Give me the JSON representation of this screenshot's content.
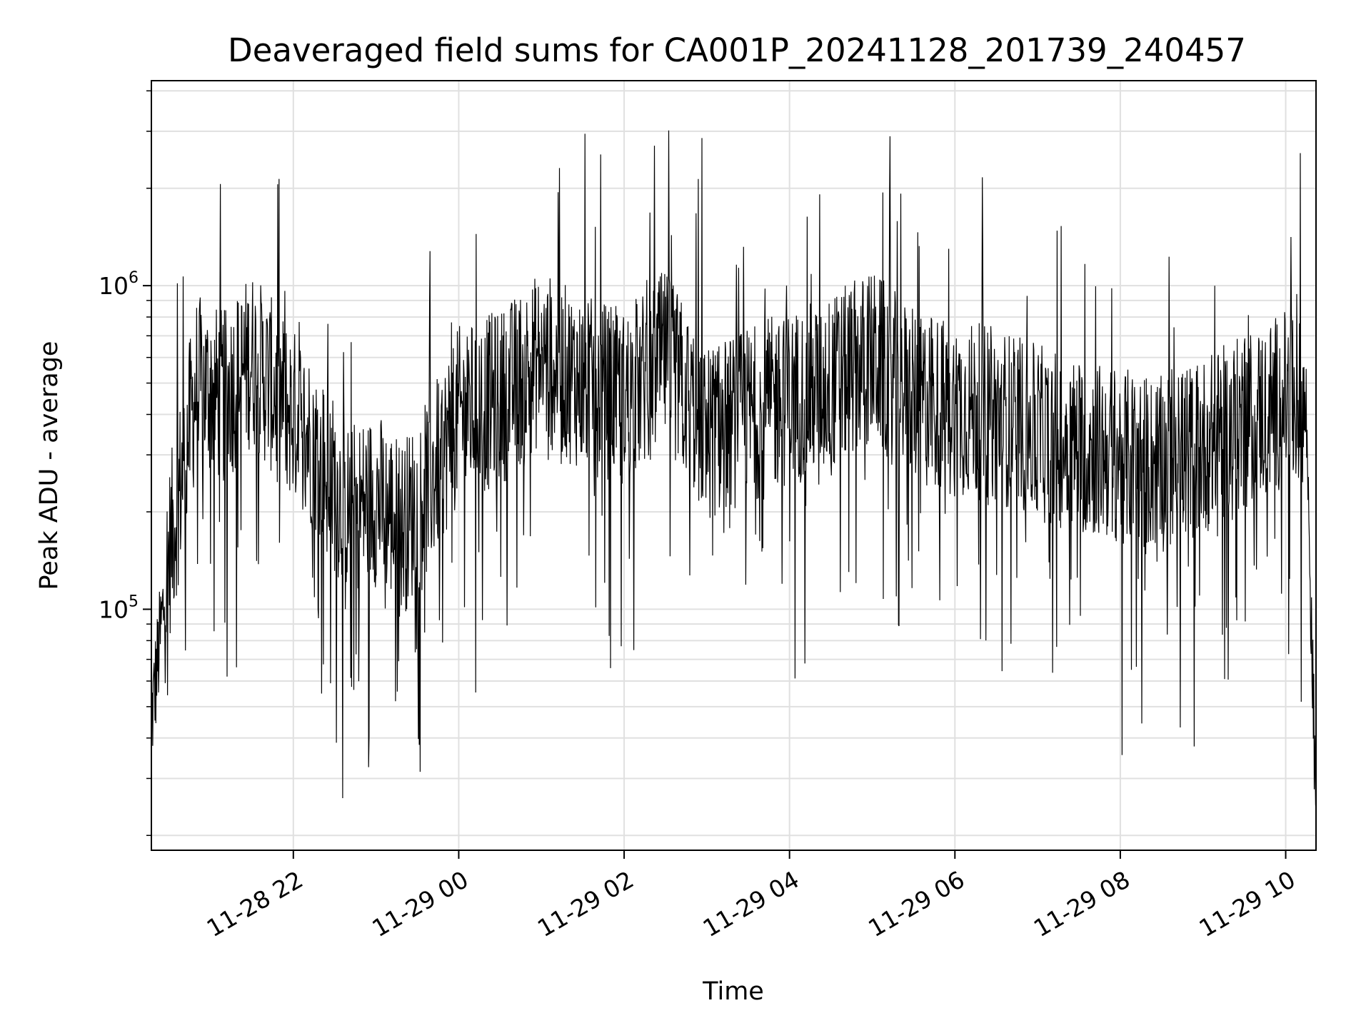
{
  "chart_data": {
    "type": "line",
    "title": "Deaveraged field sums for CA001P_20241128_201739_240457",
    "xlabel": "Time",
    "ylabel": "Peak ADU - average",
    "y_scale": "log",
    "ylim": [
      18000,
      4300000
    ],
    "xlim": [
      "2024-11-28 20:17",
      "2024-11-29 10:22"
    ],
    "x_ticks": [
      "11-28 22",
      "11-29 00",
      "11-29 02",
      "11-29 04",
      "11-29 06",
      "11-29 08",
      "11-29 10"
    ],
    "y_ticks": [
      {
        "base": "10",
        "exp": "5",
        "value": 100000
      },
      {
        "base": "10",
        "exp": "6",
        "value": 1000000
      }
    ],
    "grid": true,
    "line_color": "#000000",
    "grid_color": "#e0e0e0",
    "series": [
      {
        "x": [
          "2024-11-28 20:17",
          "2024-11-28 20:30",
          "2024-11-28 20:50",
          "2024-11-28 21:10",
          "2024-11-28 21:30",
          "2024-11-28 21:50",
          "2024-11-28 22:10",
          "2024-11-28 22:40",
          "2024-11-28 23:00",
          "2024-11-28 23:20",
          "2024-11-28 23:40",
          "2024-11-29 00:00",
          "2024-11-29 00:30",
          "2024-11-29 01:00",
          "2024-11-29 01:30",
          "2024-11-29 02:00",
          "2024-11-29 02:30",
          "2024-11-29 03:00",
          "2024-11-29 03:30",
          "2024-11-29 04:00",
          "2024-11-29 04:30",
          "2024-11-29 05:00",
          "2024-11-29 05:30",
          "2024-11-29 06:00",
          "2024-11-29 06:30",
          "2024-11-29 07:00",
          "2024-11-29 07:30",
          "2024-11-29 08:00",
          "2024-11-29 08:30",
          "2024-11-29 09:00",
          "2024-11-29 09:30",
          "2024-11-29 10:00",
          "2024-11-29 10:15",
          "2024-11-29 10:22"
        ],
        "y": [
          45000,
          150000,
          500000,
          450000,
          600000,
          450000,
          350000,
          200000,
          220000,
          180000,
          250000,
          400000,
          450000,
          600000,
          500000,
          450000,
          600000,
          350000,
          400000,
          450000,
          500000,
          600000,
          450000,
          420000,
          400000,
          350000,
          320000,
          300000,
          280000,
          320000,
          380000,
          450000,
          400000,
          22000
        ]
      }
    ]
  }
}
